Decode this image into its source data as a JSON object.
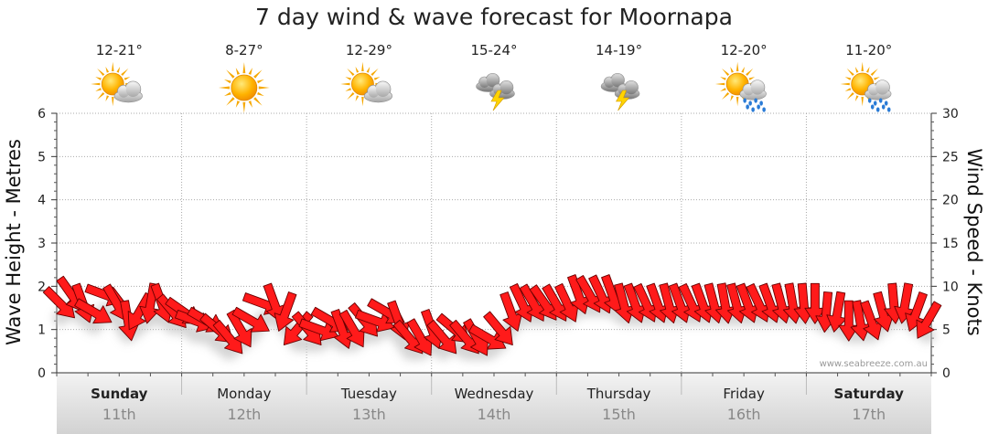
{
  "chart_data": {
    "type": "line",
    "title": "7 day wind & wave forecast for Moornapa",
    "ylabel_left": "Wave Height - Metres",
    "ylabel_right": "Wind Speed - Knots",
    "ylim_left": [
      0,
      6
    ],
    "ylim_right": [
      0,
      30
    ],
    "yticks_left": [
      "0",
      "1",
      "2",
      "3",
      "4",
      "5",
      "6"
    ],
    "yticks_right": [
      "0",
      "5",
      "10",
      "15",
      "20",
      "25",
      "30"
    ],
    "grid": true,
    "days": [
      {
        "name": "Sunday",
        "date": "11th",
        "temp": "12-21°",
        "icon": "partly-cloudy-icon",
        "bold": true
      },
      {
        "name": "Monday",
        "date": "12th",
        "temp": "8-27°",
        "icon": "sunny-icon",
        "bold": false
      },
      {
        "name": "Tuesday",
        "date": "13th",
        "temp": "12-29°",
        "icon": "partly-cloudy-icon",
        "bold": false
      },
      {
        "name": "Wednesday",
        "date": "14th",
        "temp": "15-24°",
        "icon": "thunderstorm-icon",
        "bold": false
      },
      {
        "name": "Thursday",
        "date": "15th",
        "temp": "14-19°",
        "icon": "thunderstorm-icon",
        "bold": false
      },
      {
        "name": "Friday",
        "date": "16th",
        "temp": "12-20°",
        "icon": "partly-cloudy-rain-icon",
        "bold": false
      },
      {
        "name": "Saturday",
        "date": "17th",
        "temp": "11-20°",
        "icon": "partly-cloudy-rain-icon",
        "bold": true
      }
    ],
    "series": [
      {
        "values": [
          8,
          9,
          8,
          7,
          9,
          8,
          6,
          7,
          8,
          8,
          7,
          7,
          6,
          6,
          5,
          4,
          5,
          6,
          8,
          8,
          7,
          5,
          5,
          5,
          6,
          5,
          5,
          6,
          6,
          7,
          6,
          4,
          4,
          5,
          4,
          5,
          4,
          4,
          4,
          5,
          7,
          8,
          8,
          8,
          8,
          8,
          9,
          9,
          9,
          9,
          8,
          8,
          8,
          8,
          8,
          8,
          8,
          8,
          8,
          8,
          8,
          8,
          8,
          8,
          8,
          8,
          8,
          8,
          7,
          7,
          6,
          6,
          6,
          7,
          8,
          8,
          7,
          6
        ],
        "directions": [
          225,
          235,
          250,
          210,
          200,
          240,
          260,
          300,
          280,
          250,
          230,
          215,
          200,
          210,
          220,
          230,
          240,
          210,
          200,
          250,
          290,
          310,
          230,
          200,
          210,
          250,
          240,
          230,
          200,
          210,
          250,
          230,
          240,
          250,
          230,
          220,
          230,
          240,
          210,
          230,
          250,
          245,
          240,
          235,
          240,
          245,
          250,
          240,
          245,
          250,
          255,
          250,
          245,
          250,
          255,
          250,
          245,
          250,
          255,
          260,
          255,
          250,
          245,
          250,
          255,
          260,
          265,
          270,
          275,
          280,
          270,
          260,
          250,
          255,
          265,
          280,
          290,
          300
        ]
      }
    ]
  },
  "watermark": "www.seabreeze.com.au"
}
